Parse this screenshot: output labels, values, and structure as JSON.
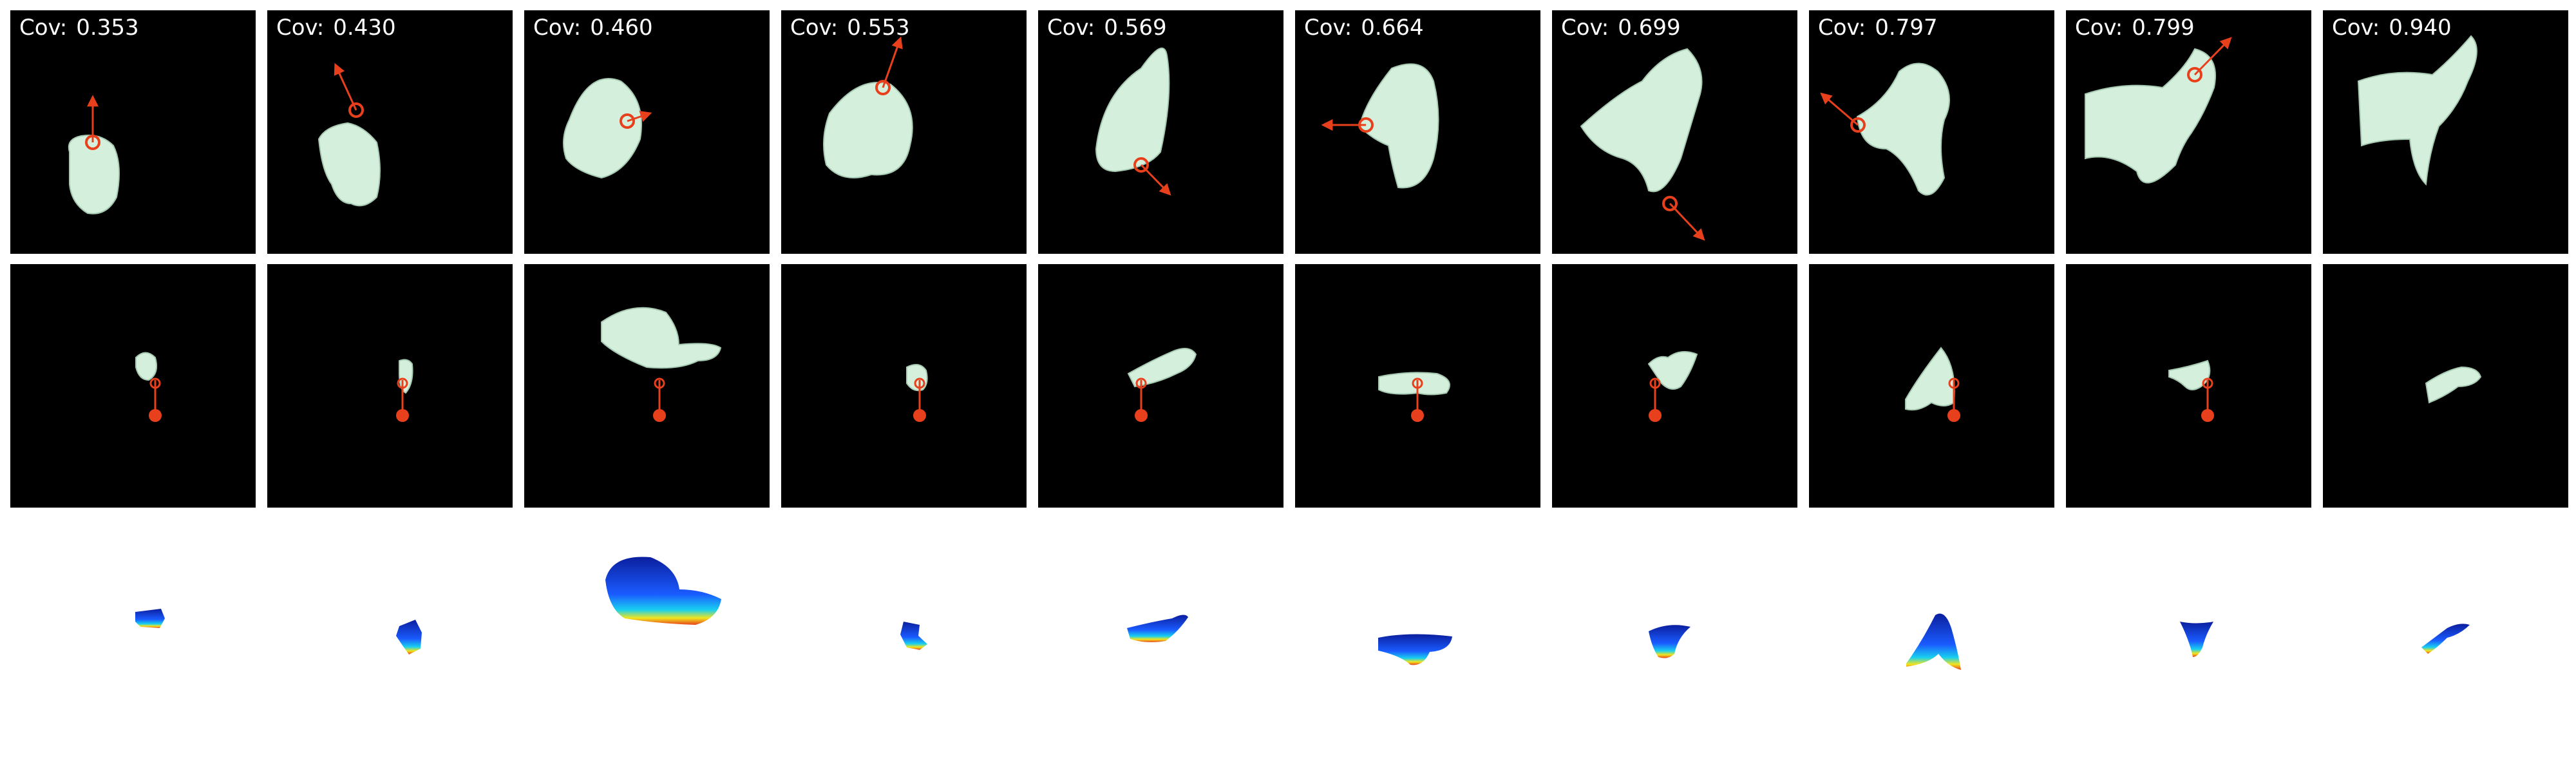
{
  "header_prefix": "Cov:",
  "panels": [
    {
      "cov": "0.353"
    },
    {
      "cov": "0.430"
    },
    {
      "cov": "0.460"
    },
    {
      "cov": "0.553"
    },
    {
      "cov": "0.569"
    },
    {
      "cov": "0.664"
    },
    {
      "cov": "0.699"
    },
    {
      "cov": "0.797"
    },
    {
      "cov": "0.799"
    },
    {
      "cov": "0.940"
    }
  ],
  "colors": {
    "frame_bg": "#000000",
    "cloth": "#d4f0dd",
    "cloth_shadow": "#a7c9b2",
    "marker": "#e8401c",
    "depth_low": "#0b1f9e",
    "depth_mid": "#1f8fff",
    "depth_high": "#f2e51c",
    "depth_edge": "#e8401c"
  }
}
